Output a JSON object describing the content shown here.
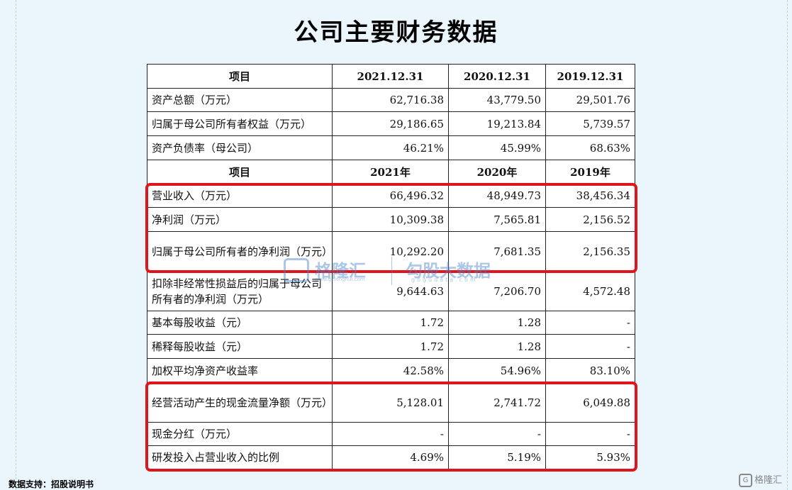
{
  "title": "公司主要财务数据",
  "header1": {
    "col0": "项目",
    "col1": "2021.12.31",
    "col2": "2020.12.31",
    "col3": "2019.12.31"
  },
  "header2": {
    "col0": "项目",
    "col1": "2021年",
    "col2": "2020年",
    "col3": "2019年"
  },
  "rows": [
    {
      "label": "资产总额（万元）",
      "v2021": "62,716.38",
      "v2020": "43,779.50",
      "v2019": "29,501.76"
    },
    {
      "label": "归属于母公司所有者权益（万元）",
      "v2021": "29,186.65",
      "v2020": "19,213.84",
      "v2019": "5,739.57"
    },
    {
      "label": "资产负债率（母公司）",
      "v2021": "46.21%",
      "v2020": "45.99%",
      "v2019": "68.63%"
    },
    {
      "label": "营业收入（万元）",
      "v2021": "66,496.32",
      "v2020": "48,949.73",
      "v2019": "38,456.34"
    },
    {
      "label": "净利润（万元）",
      "v2021": "10,309.38",
      "v2020": "7,565.81",
      "v2019": "2,156.52"
    },
    {
      "label": "归属于母公司所有者的净利润（万元）",
      "v2021": "10,292.20",
      "v2020": "7,681.35",
      "v2019": "2,156.35"
    },
    {
      "label": "扣除非经常性损益后的归属于母公司所有者的净利润（万元）",
      "v2021": "9,644.63",
      "v2020": "7,206.70",
      "v2019": "4,572.48"
    },
    {
      "label": "基本每股收益（元）",
      "v2021": "1.72",
      "v2020": "1.28",
      "v2019": "-"
    },
    {
      "label": "稀释每股收益（元）",
      "v2021": "1.72",
      "v2020": "1.28",
      "v2019": "-"
    },
    {
      "label": "加权平均净资产收益率",
      "v2021": "42.58%",
      "v2020": "54.96%",
      "v2019": "83.10%"
    },
    {
      "label": "经营活动产生的现金流量净额（万元）",
      "v2021": "5,128.01",
      "v2020": "2,741.72",
      "v2019": "6,049.88"
    },
    {
      "label": "现金分红（万元）",
      "v2021": "-",
      "v2020": "-",
      "v2019": "-"
    },
    {
      "label": "研发投入占营业收入的比例",
      "v2021": "4.69%",
      "v2020": "5.19%",
      "v2019": "5.93%"
    }
  ],
  "watermark": {
    "name1": "格隆汇",
    "url1": "www.gelonghui.com",
    "name2": "勾股大数据",
    "url2": "gogudata.com"
  },
  "source": "数据支持：招股说明书",
  "corner_logo": "格隆汇",
  "colors": {
    "background": "#eaf6fc",
    "highlight_border": "#e0141c"
  }
}
